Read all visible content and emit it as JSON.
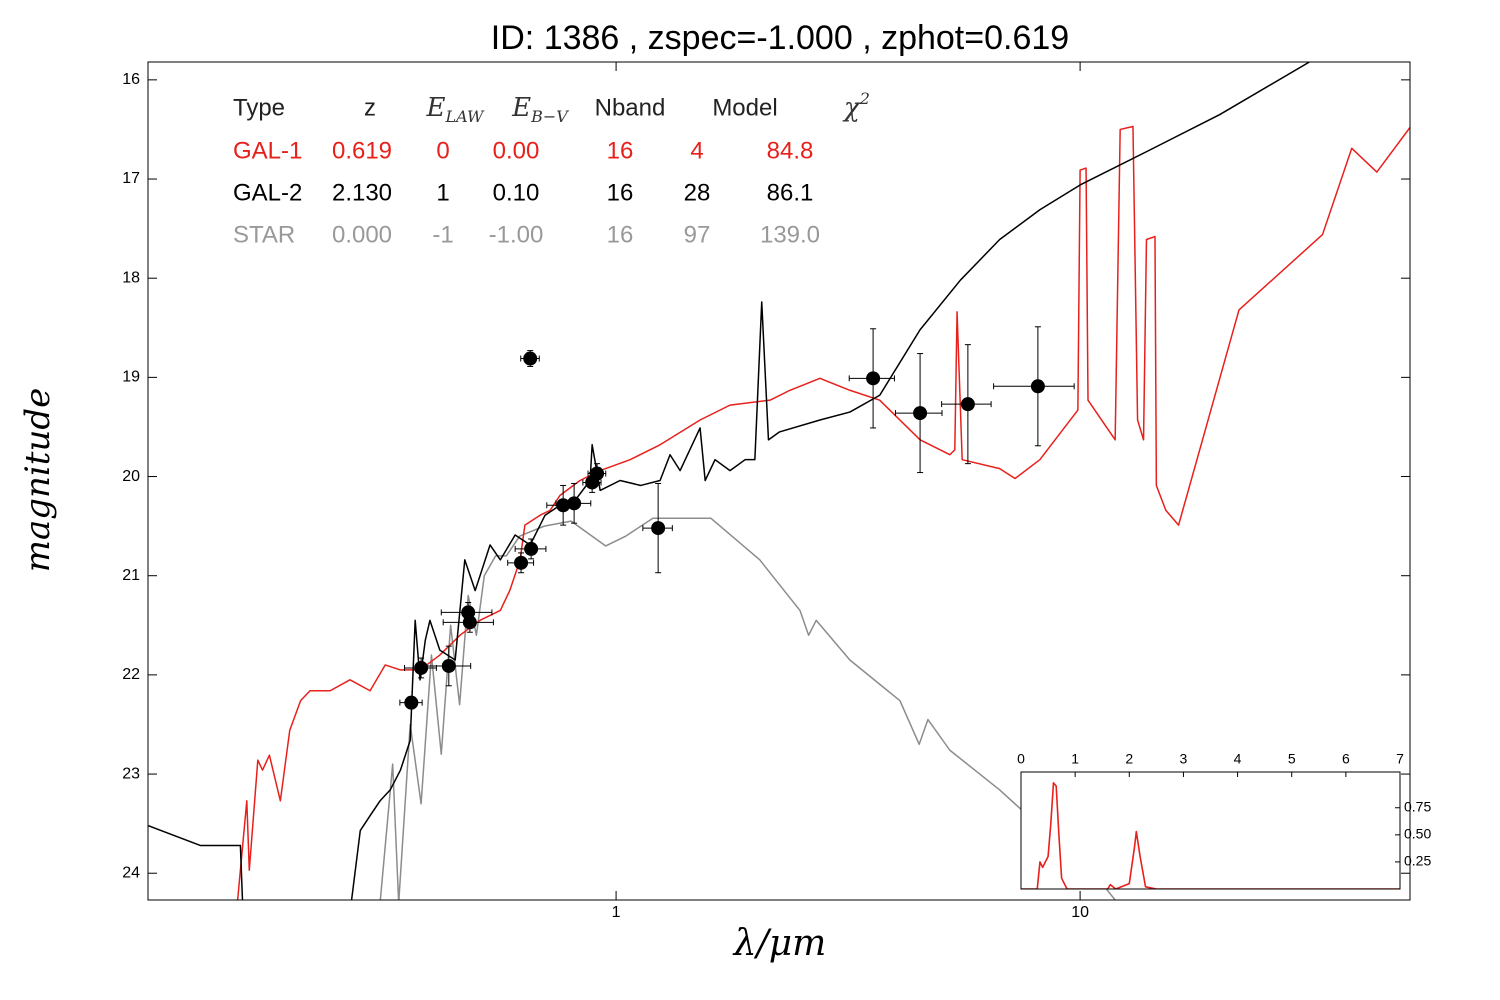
{
  "chart_data": [
    {
      "type": "line",
      "title": "ID:  1386  , zspec=-1.000 , zphot=0.619",
      "x_label": "λ/μm",
      "y_label": "magnitude",
      "xlim": [
        0.098,
        51.4
      ],
      "xticks": [
        1,
        10
      ],
      "xscale": "log",
      "ylim": [
        24.27,
        15.82
      ],
      "yticks": [
        16,
        17,
        18,
        19,
        20,
        21,
        22,
        23,
        24
      ],
      "grid": false,
      "series": [
        {
          "color": "#8c8c8c",
          "x": [
            0.31,
            0.33,
            0.34,
            0.36,
            0.38,
            0.4,
            0.42,
            0.44,
            0.46,
            0.48,
            0.5,
            0.52,
            0.55,
            0.58,
            0.62,
            0.7,
            0.8,
            0.95,
            1.05,
            1.2,
            1.6,
            2.04,
            2.49,
            2.6,
            2.7,
            3.19,
            4.09,
            4.5,
            4.7,
            5.24,
            6.71,
            8.6,
            11.0,
            11.9
          ],
          "values": [
            24.3,
            22.9,
            24.3,
            22.5,
            23.3,
            21.8,
            22.8,
            21.5,
            22.3,
            21.2,
            21.6,
            21.0,
            20.8,
            20.8,
            20.6,
            20.5,
            20.45,
            20.7,
            20.6,
            20.42,
            20.42,
            20.84,
            21.35,
            21.6,
            21.45,
            21.85,
            22.26,
            22.7,
            22.45,
            22.76,
            23.16,
            23.62,
            24.07,
            24.27
          ]
        },
        {
          "color": "#e8201c",
          "x": [
            0.152,
            0.16,
            0.162,
            0.169,
            0.173,
            0.179,
            0.189,
            0.198,
            0.209,
            0.219,
            0.242,
            0.267,
            0.295,
            0.318,
            0.343,
            0.378,
            0.417,
            0.461,
            0.509,
            0.563,
            0.59,
            0.621,
            0.636,
            0.686,
            0.721,
            0.757,
            0.836,
            0.924,
            1.072,
            1.244,
            1.517,
            1.76,
            2.147,
            2.37,
            2.75,
            3.19,
            3.7,
            4.52,
            5.24,
            5.37,
            5.43,
            5.57,
            6.71,
            7.24,
            8.19,
            9.89,
            10.0,
            10.3,
            10.4,
            11.9,
            12.2,
            13.0,
            13.3,
            13.7,
            13.9,
            14.5,
            14.6,
            15.3,
            16.3,
            22.0,
            33.3,
            38.5,
            43.6,
            51.4
          ],
          "values": [
            24.4,
            23.27,
            23.97,
            22.86,
            22.96,
            22.81,
            23.27,
            22.56,
            22.26,
            22.16,
            22.16,
            22.05,
            22.16,
            21.9,
            21.95,
            21.95,
            21.8,
            21.6,
            21.45,
            21.35,
            21.15,
            20.84,
            20.49,
            20.39,
            20.34,
            20.19,
            20.04,
            19.94,
            19.83,
            19.68,
            19.43,
            19.28,
            19.23,
            19.13,
            19.01,
            19.13,
            19.23,
            19.63,
            19.78,
            19.73,
            18.34,
            19.83,
            19.92,
            20.02,
            19.83,
            19.33,
            16.91,
            16.89,
            19.23,
            19.63,
            16.5,
            16.47,
            19.43,
            19.63,
            17.61,
            17.58,
            20.09,
            20.34,
            20.49,
            18.32,
            17.56,
            16.69,
            16.93,
            16.48
          ]
        },
        {
          "color": "#000000",
          "x": [
            0.098,
            0.127,
            0.155,
            0.157,
            null,
            0.267,
            0.281,
            0.295,
            0.31,
            0.326,
            0.343,
            0.36,
            0.369,
            0.378,
            0.388,
            0.397,
            0.417,
            0.45,
            0.472,
            0.497,
            0.535,
            0.563,
            0.606,
            0.653,
            0.703,
            0.757,
            0.816,
            0.879,
            0.888,
            0.924,
            1.02,
            1.13,
            1.244,
            1.307,
            1.374,
            1.517,
            1.556,
            1.634,
            1.76,
            1.897,
            1.991,
            2.06,
            2.13,
            2.25,
            2.75,
            3.19,
            3.7,
            4.52,
            5.52,
            6.71,
            8.19,
            10.0,
            14.1,
            20.0,
            31.2
          ],
          "values": [
            23.52,
            23.72,
            23.72,
            24.4,
            null,
            24.4,
            23.57,
            23.42,
            23.27,
            23.16,
            22.96,
            22.66,
            21.45,
            22.05,
            21.65,
            21.45,
            21.75,
            21.85,
            20.84,
            21.15,
            20.69,
            20.84,
            20.59,
            20.69,
            20.39,
            20.29,
            20.24,
            20.04,
            19.68,
            20.14,
            20.04,
            20.09,
            20.04,
            19.78,
            19.94,
            19.51,
            20.04,
            19.83,
            19.94,
            19.83,
            19.83,
            18.24,
            19.63,
            19.55,
            19.43,
            19.35,
            19.18,
            18.52,
            18.02,
            17.61,
            17.31,
            17.06,
            16.71,
            16.35,
            15.82
          ]
        }
      ],
      "photometry": {
        "color": "#000000",
        "x": [
          0.362,
          0.38,
          0.436,
          0.48,
          0.484,
          0.624,
          0.656,
          0.653,
          0.769,
          0.812,
          0.888,
          0.91,
          1.232,
          3.58,
          4.52,
          5.73,
          8.11
        ],
        "values": [
          22.28,
          21.93,
          21.91,
          21.37,
          21.47,
          20.87,
          20.73,
          18.81,
          20.29,
          20.27,
          20.06,
          19.97,
          20.52,
          19.01,
          19.36,
          19.27,
          19.09
        ],
        "yerr": [
          0.06,
          0.1,
          0.2,
          0.1,
          0.1,
          0.1,
          0.1,
          0.08,
          0.2,
          0.2,
          0.1,
          0.1,
          0.45,
          0.5,
          0.6,
          0.6,
          0.6
        ],
        "xerr": [
          0.02,
          0.03,
          0.05,
          0.06,
          0.06,
          0.04,
          0.05,
          0.03,
          0.06,
          0.07,
          0.04,
          0.04,
          0.09,
          0.4,
          0.52,
          0.7,
          1.6
        ]
      },
      "table": {
        "header": [
          "Type",
          "z",
          {
            "text": "E",
            "sub": "LAW"
          },
          {
            "text": "E",
            "sub": "B−V"
          },
          "Nband",
          "Model",
          {
            "text": "χ",
            "sup": "2"
          }
        ],
        "rows": [
          {
            "color": "#e8201c",
            "cells": [
              "GAL-1",
              "0.619",
              "0",
              "0.00",
              "16",
              "4",
              "84.8"
            ]
          },
          {
            "color": "#000000",
            "cells": [
              "GAL-2",
              "2.130",
              "1",
              "0.10",
              "16",
              "28",
              "86.1"
            ]
          },
          {
            "color": "#999999",
            "cells": [
              "STAR",
              "0.000",
              "-1",
              "-1.00",
              "16",
              "97",
              "139.0"
            ]
          }
        ]
      }
    },
    {
      "type": "line",
      "xlim": [
        0,
        7
      ],
      "xticks": [
        0,
        1,
        2,
        3,
        4,
        5,
        6,
        7
      ],
      "ylim": [
        0,
        1.08
      ],
      "yticks": [
        0.25,
        {
          "value": 0.5,
          "label": "0.50"
        },
        0.75
      ],
      "series": [
        {
          "color": "#e8201c",
          "x": [
            0,
            0.3,
            0.35,
            0.4,
            0.5,
            0.55,
            0.6,
            0.65,
            0.7,
            0.75,
            0.85,
            1.6,
            1.65,
            1.75,
            2.0,
            2.1,
            2.13,
            2.2,
            2.3,
            2.5,
            7
          ],
          "values": [
            0,
            0,
            0.25,
            0.2,
            0.3,
            0.6,
            0.98,
            0.95,
            0.5,
            0.1,
            0,
            0,
            0.04,
            0,
            0.05,
            0.4,
            0.53,
            0.3,
            0.02,
            0,
            0
          ]
        }
      ]
    }
  ]
}
